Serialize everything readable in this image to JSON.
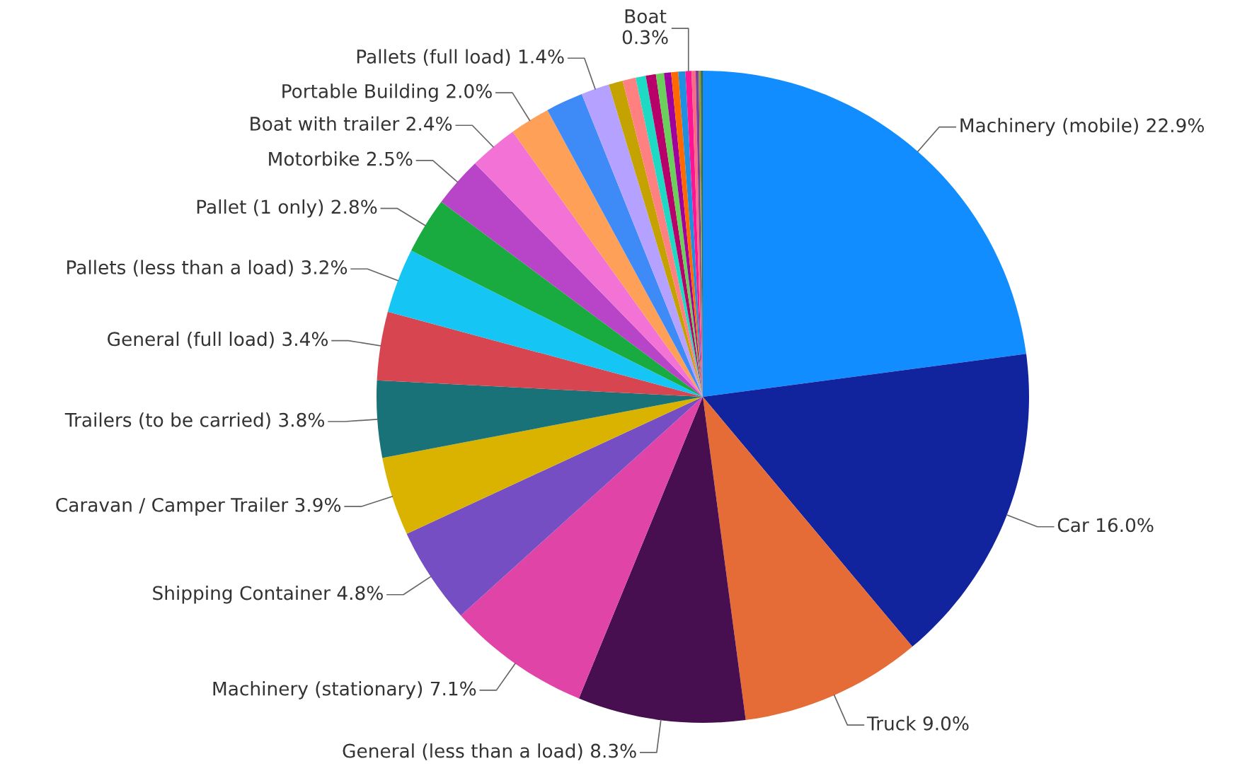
{
  "chart_data": {
    "type": "pie",
    "categories": [
      "Machinery (mobile)",
      "Car",
      "Truck",
      "General (less than a load)",
      "Machinery (stationary)",
      "Shipping Container",
      "Caravan / Camper Trailer",
      "Trailers (to be carried)",
      "General (full load)",
      "Pallets (less than a load)",
      "Pallet (1 only)",
      "Motorbike",
      "Boat with trailer",
      "Portable Building",
      null,
      "Pallets (full load)",
      null,
      null,
      null,
      null,
      null,
      null,
      null,
      null,
      "Boat",
      null,
      null,
      null,
      null
    ],
    "values": [
      22.9,
      16.0,
      9.0,
      8.3,
      7.1,
      4.8,
      3.9,
      3.8,
      3.4,
      3.2,
      2.8,
      2.5,
      2.4,
      2.0,
      1.85,
      1.4,
      0.7,
      0.65,
      0.5,
      0.5,
      0.4,
      0.35,
      0.35,
      0.35,
      0.3,
      0.2,
      0.15,
      0.1,
      0.1
    ],
    "value_labels": [
      "22.9%",
      "16.0%",
      "9.0%",
      "8.3%",
      "7.1%",
      "4.8%",
      "3.9%",
      "3.8%",
      "3.4%",
      "3.2%",
      "2.8%",
      "2.5%",
      "2.4%",
      "2.0%",
      null,
      "1.4%",
      null,
      null,
      null,
      null,
      null,
      null,
      null,
      null,
      "0.3%",
      null,
      null,
      null,
      null
    ],
    "colors": [
      "#118dff",
      "#12239e",
      "#e66c37",
      "#470f4f",
      "#e044a7",
      "#744ec2",
      "#d9b300",
      "#197278",
      "#d64550",
      "#15c6f4",
      "#1aab40",
      "#b845c7",
      "#f272d6",
      "#ffa058",
      "#3e8bf7",
      "#b5a1ff",
      "#c4a200",
      "#ff8080",
      "#1ed9c4",
      "#b8006b",
      "#6acf5b",
      "#a0009b",
      "#ff6a00",
      "#1f8fe0",
      "#ff1493",
      "#f96a84",
      "#7b3f9e",
      "#8c9a3a",
      "#3a6b4a"
    ]
  }
}
